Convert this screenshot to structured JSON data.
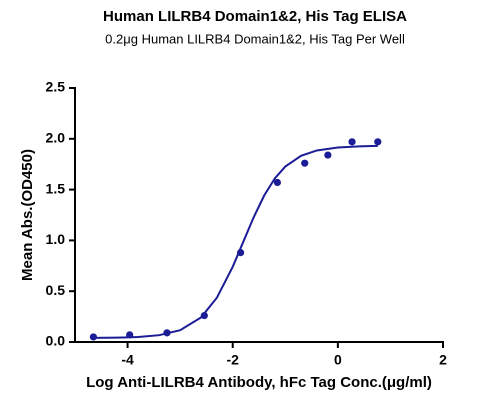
{
  "chart_data": {
    "type": "scatter",
    "title": "Human LILRB4 Domain1&2, His Tag ELISA",
    "subtitle": "0.2μg Human LILRB4 Domain1&2, His Tag Per Well",
    "x_label": "Log Anti-LILRB4 Antibody, hFc Tag Conc.(μg/ml)",
    "y_label": "Mean Abs.(OD450)",
    "xlim": [
      -5,
      2
    ],
    "xticks": [
      -4,
      -2,
      0,
      2
    ],
    "ylim": [
      0,
      2.5
    ],
    "yticks": [
      {
        "value": 0,
        "label": "0.0"
      },
      0.5,
      {
        "value": 1,
        "label": "1.0"
      },
      1.5,
      {
        "value": 2,
        "label": "2.0"
      },
      2.5
    ],
    "series": [
      {
        "color": "#1c1c96",
        "mode": "markers",
        "x": [
          -4.65,
          -3.96,
          -3.25,
          -2.54,
          -1.85,
          -1.15,
          -0.63,
          -0.19,
          0.27,
          0.76
        ],
        "values": [
          0.05,
          0.07,
          0.09,
          0.26,
          0.88,
          1.57,
          1.76,
          1.84,
          1.97,
          1.97
        ]
      },
      {
        "color": "#1c1c96",
        "mode": "line",
        "x": [
          -4.65,
          -4.2,
          -3.8,
          -3.4,
          -3.0,
          -2.6,
          -2.3,
          -2.0,
          -1.8,
          -1.6,
          -1.4,
          -1.2,
          -1.0,
          -0.7,
          -0.4,
          0,
          0.4,
          0.76
        ],
        "values": [
          0.04,
          0.043,
          0.049,
          0.067,
          0.116,
          0.243,
          0.437,
          0.74,
          0.985,
          1.229,
          1.443,
          1.61,
          1.727,
          1.833,
          1.885,
          1.914,
          1.925,
          1.93
        ]
      }
    ]
  }
}
